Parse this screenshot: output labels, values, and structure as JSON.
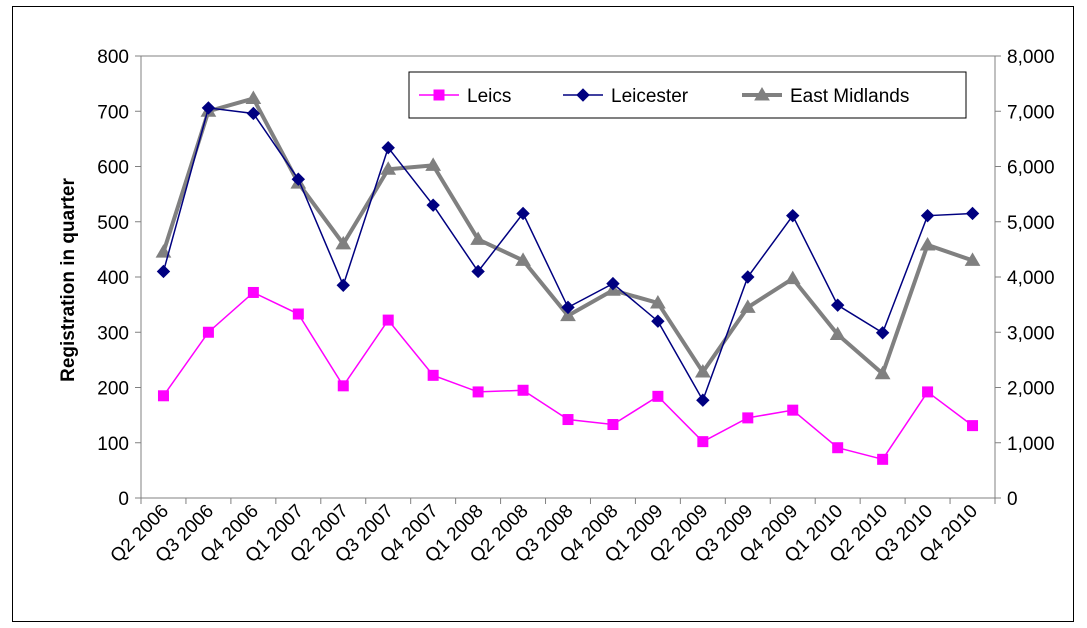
{
  "chart_data": {
    "type": "line",
    "categories": [
      "Q2 2006",
      "Q3 2006",
      "Q4 2006",
      "Q1 2007",
      "Q2 2007",
      "Q3 2007",
      "Q4 2007",
      "Q1 2008",
      "Q2 2008",
      "Q3 2008",
      "Q4 2008",
      "Q1 2009",
      "Q2 2009",
      "Q3 2009",
      "Q4 2009",
      "Q1 2010",
      "Q2 2010",
      "Q3 2010",
      "Q4 2010"
    ],
    "ylabel": "Registration in quarter",
    "ylim": [
      0,
      800
    ],
    "y_ticks": [
      "0",
      "100",
      "200",
      "300",
      "400",
      "500",
      "600",
      "700",
      "800"
    ],
    "y2lim": [
      0,
      8000
    ],
    "y2_ticks": [
      "0",
      "1,000",
      "2,000",
      "3,000",
      "4,000",
      "5,000",
      "6,000",
      "7,000",
      "8,000"
    ],
    "legend_position": "top-right",
    "grid": false,
    "series": [
      {
        "name": "Leics",
        "axis": "left",
        "color": "#ff00ff",
        "marker": "square",
        "values": [
          185,
          300,
          372,
          333,
          203,
          322,
          222,
          192,
          195,
          142,
          133,
          184,
          102,
          145,
          159,
          91,
          70,
          192,
          131
        ]
      },
      {
        "name": "Leicester",
        "axis": "left",
        "color": "#000080",
        "marker": "diamond",
        "values": [
          410,
          706,
          696,
          577,
          385,
          634,
          530,
          410,
          515,
          345,
          388,
          320,
          177,
          400,
          511,
          349,
          299,
          511,
          515
        ]
      },
      {
        "name": "East Midlands",
        "axis": "right",
        "color": "#808080",
        "marker": "triangle",
        "values": [
          4450,
          7000,
          7230,
          5700,
          4600,
          5950,
          6020,
          4680,
          4300,
          3300,
          3760,
          3530,
          2280,
          3450,
          3970,
          2960,
          2250,
          4580,
          4300
        ]
      }
    ]
  }
}
